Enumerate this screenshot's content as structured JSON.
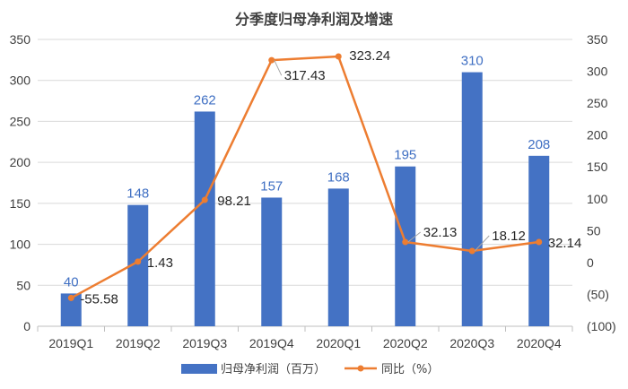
{
  "chart_data": {
    "type": "bar",
    "title": "分季度归母净利润及增速",
    "categories": [
      "2019Q1",
      "2019Q2",
      "2019Q3",
      "2019Q4",
      "2020Q1",
      "2020Q2",
      "2020Q3",
      "2020Q4"
    ],
    "series": [
      {
        "name": "归母净利润（百万）",
        "type": "bar",
        "axis": "left",
        "color": "#4472c4",
        "values": [
          40,
          148,
          262,
          157,
          168,
          195,
          310,
          208
        ],
        "labels": [
          "40",
          "148",
          "262",
          "157",
          "168",
          "195",
          "310",
          "208"
        ]
      },
      {
        "name": "同比（%）",
        "type": "line",
        "axis": "right",
        "color": "#ed7d31",
        "values": [
          -55.58,
          1.43,
          98.21,
          317.43,
          323.24,
          32.13,
          18.12,
          32.14
        ],
        "labels": [
          "-55.58",
          "1.43",
          "98.21",
          "317.43",
          "323.24",
          "32.13",
          "18.12",
          "32.14"
        ]
      }
    ],
    "y_left": {
      "range": [
        0,
        350
      ],
      "ticks": [
        "0",
        "50",
        "100",
        "150",
        "200",
        "250",
        "300",
        "350"
      ]
    },
    "y_right": {
      "range": [
        -100,
        350
      ],
      "ticks": [
        "(100)",
        "(50)",
        "0",
        "50",
        "100",
        "150",
        "200",
        "250",
        "300",
        "350"
      ]
    },
    "grid": true,
    "legend_position": "bottom"
  }
}
